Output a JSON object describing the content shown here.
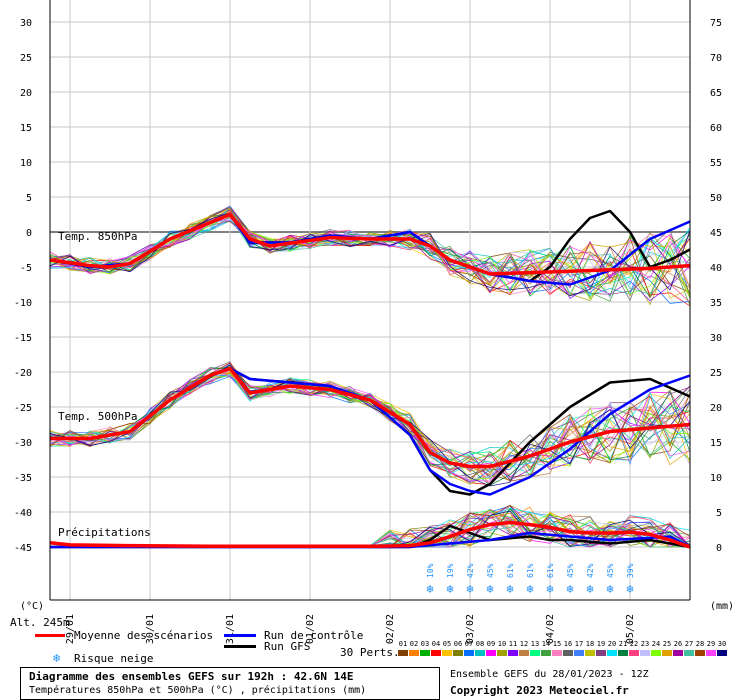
{
  "chart_data": {
    "type": "line",
    "left_axis": {
      "label": "(°C)",
      "ticks": [
        30,
        25,
        20,
        15,
        10,
        5,
        0,
        -5,
        -10,
        -15,
        -20,
        -25,
        -30,
        -35,
        -40,
        -45
      ],
      "range": [
        -45,
        30
      ]
    },
    "right_axis": {
      "label": "(mm)",
      "ticks": [
        75,
        70,
        65,
        60,
        55,
        50,
        45,
        40,
        35,
        30,
        25,
        20,
        15,
        10,
        5,
        0
      ],
      "range": [
        0,
        75
      ]
    },
    "x_ticks": [
      "29/01",
      "30/01",
      "31/01",
      "01/02",
      "02/02",
      "03/02",
      "04/02",
      "05/02"
    ],
    "x_range_hours": [
      0,
      192
    ],
    "panel_labels": [
      "Temp. 850hPa",
      "Temp. 500hPa",
      "Précipitations"
    ],
    "altitude_label": "Alt. 245m",
    "snow_risk": [
      {
        "h": 114,
        "pct": "10%"
      },
      {
        "h": 120,
        "pct": "19%"
      },
      {
        "h": 126,
        "pct": "42%"
      },
      {
        "h": 132,
        "pct": "45%"
      },
      {
        "h": 138,
        "pct": "61%"
      },
      {
        "h": 144,
        "pct": "61%"
      },
      {
        "h": 150,
        "pct": "61%"
      },
      {
        "h": 156,
        "pct": "45%"
      },
      {
        "h": 162,
        "pct": "42%"
      },
      {
        "h": 168,
        "pct": "45%"
      },
      {
        "h": 174,
        "pct": "39%"
      }
    ],
    "series": [
      {
        "name": "Moyenne des scénarios",
        "panel": "t850",
        "unit": "°C",
        "x": [
          0,
          12,
          18,
          24,
          36,
          54,
          60,
          66,
          72,
          84,
          96,
          108,
          114,
          120,
          126,
          132,
          144,
          156,
          168,
          180,
          192
        ],
        "y": [
          -4,
          -4.8,
          -5,
          -4.5,
          -1,
          2.5,
          -1,
          -2,
          -1.6,
          -0.8,
          -1,
          -1,
          -2,
          -4,
          -5,
          -6,
          -5.8,
          -5.6,
          -5.4,
          -5.2,
          -4.8
        ]
      },
      {
        "name": "Run de contrôle",
        "panel": "t850",
        "unit": "°C",
        "x": [
          0,
          12,
          24,
          36,
          54,
          60,
          72,
          84,
          96,
          108,
          120,
          132,
          144,
          156,
          168,
          180,
          192
        ],
        "y": [
          -4,
          -5,
          -4.5,
          -1,
          2.5,
          -1.5,
          -1.5,
          -0.5,
          -1,
          0,
          -4,
          -6,
          -7,
          -7.5,
          -5.5,
          -1,
          1.5
        ]
      },
      {
        "name": "Run GFS",
        "panel": "t850",
        "unit": "°C",
        "x": [
          0,
          12,
          24,
          36,
          54,
          60,
          72,
          84,
          96,
          108,
          120,
          132,
          144,
          150,
          156,
          162,
          168,
          174,
          180,
          186,
          192
        ],
        "y": [
          -4,
          -5,
          -4.5,
          -1,
          2.5,
          -1.5,
          -1.5,
          -0.5,
          -1,
          0,
          -4,
          -6,
          -7,
          -5,
          -1,
          2,
          3,
          0,
          -5,
          -4,
          -2.5
        ]
      },
      {
        "name": "Moyenne des scénarios",
        "panel": "t500",
        "unit": "°C",
        "x": [
          0,
          12,
          24,
          36,
          48,
          54,
          60,
          66,
          72,
          84,
          96,
          108,
          114,
          120,
          126,
          132,
          144,
          156,
          168,
          180,
          192
        ],
        "y": [
          -29.5,
          -29.5,
          -28.5,
          -24,
          -20.5,
          -19.5,
          -23,
          -22.5,
          -22,
          -22.5,
          -24,
          -27.5,
          -31.5,
          -33,
          -33.5,
          -33.5,
          -32,
          -30,
          -28.5,
          -28,
          -27.5
        ]
      },
      {
        "name": "Run de contrôle",
        "panel": "t500",
        "unit": "°C",
        "x": [
          0,
          12,
          24,
          36,
          48,
          54,
          60,
          72,
          84,
          96,
          108,
          114,
          120,
          126,
          132,
          144,
          156,
          168,
          180,
          192
        ],
        "y": [
          -29.5,
          -29.5,
          -28.5,
          -24,
          -20.5,
          -19.5,
          -21,
          -21.5,
          -22,
          -24,
          -29,
          -34,
          -36,
          -37,
          -37.5,
          -35,
          -31,
          -26,
          -22.5,
          -20.5
        ]
      },
      {
        "name": "Run GFS",
        "panel": "t500",
        "unit": "°C",
        "x": [
          0,
          12,
          24,
          36,
          48,
          54,
          60,
          72,
          84,
          96,
          108,
          114,
          120,
          126,
          132,
          138,
          144,
          156,
          168,
          180,
          192
        ],
        "y": [
          -29.5,
          -29.5,
          -28.5,
          -24,
          -20.5,
          -19.5,
          -21,
          -21.5,
          -22,
          -24,
          -29,
          -34,
          -37,
          -37.5,
          -36,
          -33,
          -30,
          -25,
          -21.5,
          -21,
          -23.5
        ]
      },
      {
        "name": "Moyenne des scénarios",
        "panel": "precip",
        "unit": "mm",
        "x": [
          0,
          6,
          24,
          48,
          72,
          96,
          108,
          114,
          120,
          126,
          132,
          138,
          144,
          150,
          156,
          162,
          168,
          174,
          180,
          186,
          192
        ],
        "y": [
          0.6,
          0.3,
          0.2,
          0.1,
          0.1,
          0.1,
          0.2,
          0.6,
          1.5,
          2.5,
          3.2,
          3.5,
          3.2,
          2.8,
          2.2,
          2,
          2,
          2.1,
          1.8,
          1,
          0
        ]
      },
      {
        "name": "Run de contrôle",
        "panel": "precip",
        "unit": "mm",
        "x": [
          0,
          24,
          60,
          72,
          96,
          108,
          120,
          132,
          144,
          156,
          168,
          180,
          186,
          192
        ],
        "y": [
          0,
          0,
          0,
          0,
          0,
          0,
          0.5,
          1,
          2,
          1.5,
          1,
          1.3,
          1.5,
          0
        ]
      },
      {
        "name": "Run GFS",
        "panel": "precip",
        "unit": "mm",
        "x": [
          0,
          24,
          60,
          72,
          96,
          108,
          114,
          120,
          132,
          144,
          150,
          156,
          168,
          180,
          192
        ],
        "y": [
          0,
          0,
          0,
          0,
          0,
          0,
          1,
          3,
          1,
          1.5,
          1,
          1,
          0.5,
          1,
          0
        ]
      }
    ]
  },
  "legend": {
    "mean": "Moyenne des scénarios",
    "control": "Run de contrôle",
    "gfs": "Run GFS",
    "snow": "Risque neige",
    "perts": "30 Perts.",
    "pert_numbers": [
      "01",
      "02",
      "03",
      "04",
      "05",
      "06",
      "07",
      "08",
      "09",
      "10",
      "11",
      "12",
      "13",
      "14",
      "15",
      "16",
      "17",
      "18",
      "19",
      "20",
      "21",
      "22",
      "23",
      "24",
      "25",
      "26",
      "27",
      "28",
      "29",
      "30"
    ],
    "pert_colors": [
      "#7f3f00",
      "#ff7f00",
      "#00b000",
      "#ff0000",
      "#ffc000",
      "#7f7f00",
      "#0070ff",
      "#00c0c0",
      "#ff00ff",
      "#a0a000",
      "#8000ff",
      "#c08040",
      "#00ff80",
      "#40a040",
      "#ff80c0",
      "#606060",
      "#4080ff",
      "#c0c000",
      "#804080",
      "#00e0ff",
      "#008040",
      "#ff4080",
      "#c0c0ff",
      "#80ff00",
      "#e0a000",
      "#a000a0",
      "#40c0a0",
      "#a04000",
      "#ff40ff",
      "#000080"
    ]
  },
  "footer": {
    "title": "Diagramme des ensembles GEFS sur 192h : 42.6N 14E",
    "subtitle": "Températures 850hPa et 500hPa (°C) , précipitations (mm)",
    "run": "Ensemble GEFS du 28/01/2023 - 12Z",
    "copyright": "Copyright 2023 Meteociel.fr"
  },
  "colors": {
    "mean": "#ff0000",
    "control": "#0000ff",
    "gfs": "#000000",
    "grid": "#c8c8c8",
    "zero_line": "#808080",
    "snow": "#1e90ff"
  }
}
